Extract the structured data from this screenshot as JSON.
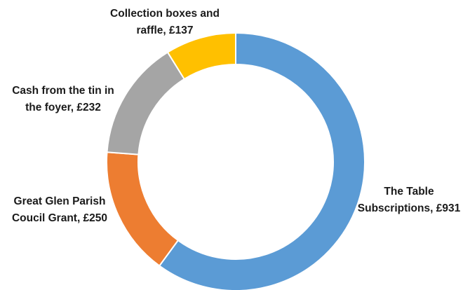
{
  "chart_data": {
    "type": "pie",
    "variant": "doughnut",
    "title": "",
    "series": [
      {
        "labels": [
          "The Table Subscriptions",
          "Great Glen Parish Coucil Grant",
          "Cash from the tin in the foyer",
          "Collection boxes and raffle"
        ],
        "values": [
          931,
          250,
          232,
          137
        ],
        "colors": [
          "#5b9bd5",
          "#ed7d31",
          "#a5a5a5",
          "#ffc000"
        ]
      }
    ],
    "data_labels": [
      {
        "line1": "The Table",
        "line2": "Subscriptions, £931"
      },
      {
        "line1": "Great Glen Parish",
        "line2": "Coucil Grant, £250"
      },
      {
        "line1": "Cash from the tin in",
        "line2": "the foyer, £232"
      },
      {
        "line1": "Collection boxes and",
        "line2": "raffle, £137"
      }
    ],
    "legend": "none"
  }
}
